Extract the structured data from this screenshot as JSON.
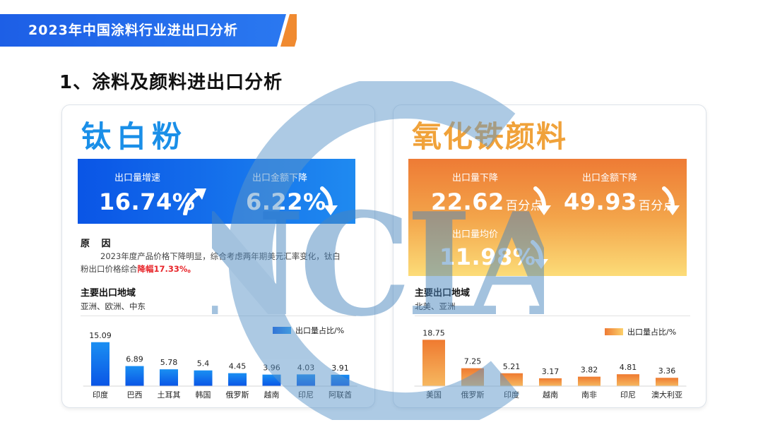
{
  "header": {
    "banner_title": "2023年中国涂料行业进出口分析"
  },
  "section_title": "1、涂料及颜料进出口分析",
  "watermark_text": "NCIA",
  "colors": {
    "blue_dark": "#0a55e6",
    "blue_light": "#1f8af0",
    "orange_dark": "#ee7b35",
    "orange_light": "#fcdc78",
    "highlight_red": "#e8262b"
  },
  "tio2": {
    "title": "钛白粉",
    "stats": [
      {
        "label": "出口量增速",
        "value": "16.74%",
        "suffix": "",
        "arrow": "up"
      },
      {
        "label": "出口金额下降",
        "value": "6.22%",
        "suffix": "",
        "arrow": "down"
      }
    ],
    "reason_title": "原 因",
    "reason_text": "2023年度产品价格下降明显，综合考虑两年期美元汇率变化，钛白粉出口价格综合",
    "reason_highlight": "降幅17.33%。",
    "regions_title": "主要出口地域",
    "regions_text": "亚洲、欧洲、中东"
  },
  "iron_oxide": {
    "title": "氧化铁颜料",
    "stats": [
      {
        "label": "出口量下降",
        "value": "22.62",
        "suffix": "百分点",
        "arrow": "down"
      },
      {
        "label": "出口金额下降",
        "value": "49.93",
        "suffix": "百分点",
        "arrow": "down"
      },
      {
        "label": "出口量均价",
        "value": "11.98%",
        "suffix": "",
        "arrow": "down"
      }
    ],
    "regions_title": "主要出口地域",
    "regions_text": "北美、亚洲"
  },
  "chart_data": [
    {
      "type": "bar",
      "title": "钛白粉主要出口地域",
      "legend": "出口量占比/%",
      "categories": [
        "印度",
        "巴西",
        "土耳其",
        "韩国",
        "俄罗斯",
        "越南",
        "印尼",
        "阿联酋"
      ],
      "values": [
        15.09,
        6.89,
        5.78,
        5.4,
        4.45,
        3.96,
        4.03,
        3.91
      ],
      "ylim": [
        0,
        16
      ],
      "xlabel": "",
      "ylabel": "",
      "grid": false
    },
    {
      "type": "bar",
      "title": "氧化铁颜料主要出口地域",
      "legend": "出口量占比/%",
      "categories": [
        "美国",
        "俄罗斯",
        "印度",
        "越南",
        "南非",
        "印尼",
        "澳大利亚"
      ],
      "values": [
        18.75,
        7.25,
        5.21,
        3.17,
        3.82,
        4.81,
        3.36
      ],
      "ylim": [
        0,
        20
      ],
      "xlabel": "",
      "ylabel": "",
      "grid": false
    }
  ]
}
